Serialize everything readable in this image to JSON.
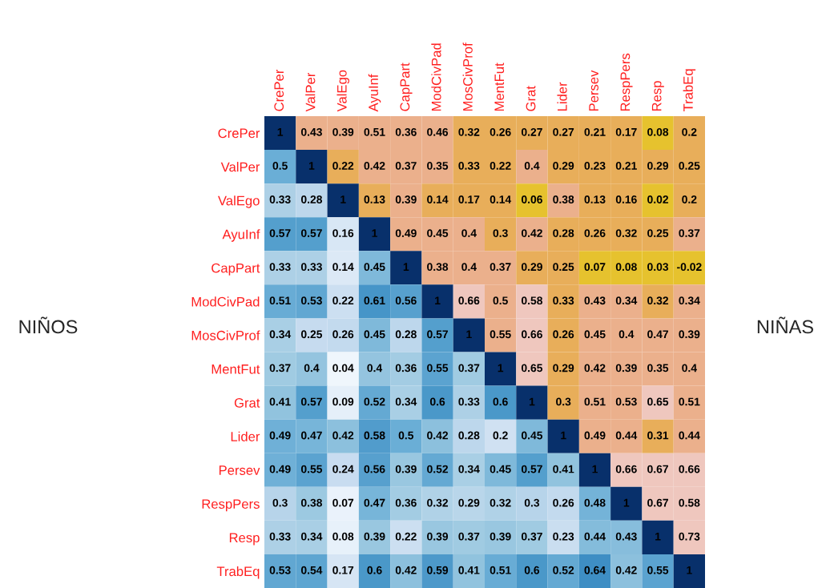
{
  "chart_data": {
    "type": "heatmap",
    "categories": [
      "CrePer",
      "ValPer",
      "ValEgo",
      "AyuInf",
      "CapPart",
      "ModCivPad",
      "MosCivProf",
      "MentFut",
      "Grat",
      "Lider",
      "Persev",
      "RespPers",
      "Resp",
      "TrabEq"
    ],
    "y_categories": [
      "CrePer",
      "ValPer",
      "ValEgo",
      "AyuInf",
      "CapPart",
      "ModCivPad",
      "MosCivProf",
      "MentFut",
      "Grat",
      "Lider",
      "Persev",
      "RespPers",
      "Resp",
      "TrabEq"
    ],
    "cells": [
      [
        1,
        0.43,
        0.39,
        0.51,
        0.36,
        0.46,
        0.32,
        0.26,
        0.27,
        0.27,
        0.21,
        0.17,
        0.08,
        0.2
      ],
      [
        0.5,
        1,
        0.22,
        0.42,
        0.37,
        0.35,
        0.33,
        0.22,
        0.4,
        0.29,
        0.23,
        0.21,
        0.29,
        0.25
      ],
      [
        0.33,
        0.28,
        1,
        0.13,
        0.39,
        0.14,
        0.17,
        0.14,
        0.06,
        0.38,
        0.13,
        0.16,
        0.02,
        0.2
      ],
      [
        0.57,
        0.57,
        0.16,
        1,
        0.49,
        0.45,
        0.4,
        0.3,
        0.42,
        0.28,
        0.26,
        0.32,
        0.25,
        0.37
      ],
      [
        0.33,
        0.33,
        0.14,
        0.45,
        1,
        0.38,
        0.4,
        0.37,
        0.29,
        0.25,
        0.07,
        0.08,
        0.03,
        -0.02
      ],
      [
        0.51,
        0.53,
        0.22,
        0.61,
        0.56,
        1,
        0.66,
        0.5,
        0.58,
        0.33,
        0.43,
        0.34,
        0.32,
        0.34
      ],
      [
        0.34,
        0.25,
        0.26,
        0.45,
        0.28,
        0.57,
        1,
        0.55,
        0.66,
        0.26,
        0.45,
        0.4,
        0.47,
        0.39
      ],
      [
        0.37,
        0.4,
        0.04,
        0.4,
        0.36,
        0.55,
        0.37,
        1,
        0.65,
        0.29,
        0.42,
        0.39,
        0.35,
        0.4
      ],
      [
        0.41,
        0.57,
        0.09,
        0.52,
        0.34,
        0.6,
        0.33,
        0.6,
        1,
        0.3,
        0.51,
        0.53,
        0.65,
        0.51
      ],
      [
        0.49,
        0.47,
        0.42,
        0.58,
        0.5,
        0.42,
        0.28,
        0.2,
        0.45,
        1,
        0.49,
        0.44,
        0.31,
        0.44
      ],
      [
        0.49,
        0.55,
        0.24,
        0.56,
        0.39,
        0.52,
        0.34,
        0.45,
        0.57,
        0.41,
        1,
        0.66,
        0.67,
        0.66
      ],
      [
        0.3,
        0.38,
        0.07,
        0.47,
        0.36,
        0.32,
        0.29,
        0.32,
        0.3,
        0.26,
        0.48,
        1,
        0.67,
        0.58
      ],
      [
        0.33,
        0.34,
        0.08,
        0.39,
        0.22,
        0.39,
        0.37,
        0.39,
        0.37,
        0.23,
        0.44,
        0.43,
        1,
        0.73
      ],
      [
        0.53,
        0.54,
        0.17,
        0.6,
        0.42,
        0.59,
        0.41,
        0.51,
        0.6,
        0.52,
        0.64,
        0.42,
        0.55,
        1
      ]
    ],
    "data_labels": true,
    "annotations": [
      "NIÑOS",
      "NIÑAS"
    ]
  }
}
